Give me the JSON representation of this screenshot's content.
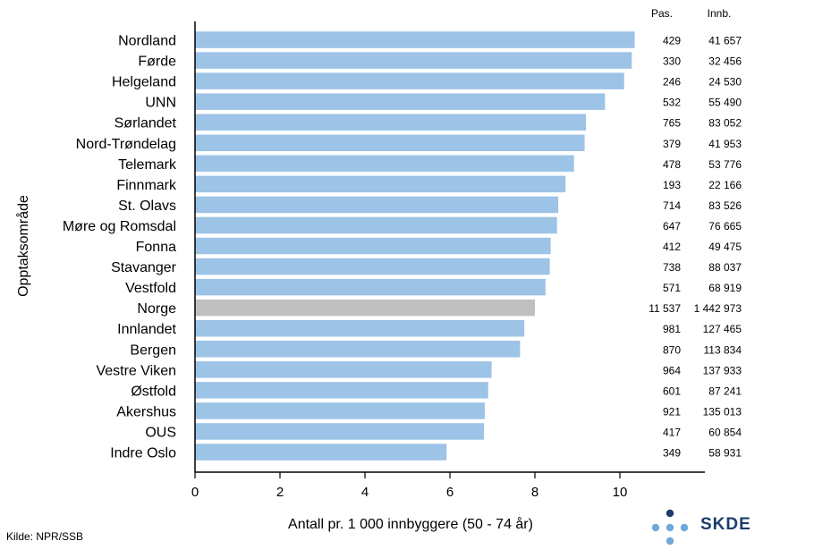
{
  "chart_data": {
    "type": "bar",
    "orientation": "horizontal",
    "categories": [
      "Nordland",
      "Førde",
      "Helgeland",
      "UNN",
      "Sørlandet",
      "Nord-Trøndelag",
      "Telemark",
      "Finnmark",
      "St. Olavs",
      "Møre og Romsdal",
      "Fonna",
      "Stavanger",
      "Vestfold",
      "Norge",
      "Innlandet",
      "Bergen",
      "Vestre Viken",
      "Østfold",
      "Akershus",
      "OUS",
      "Indre Oslo"
    ],
    "values": [
      10.35,
      10.28,
      10.1,
      9.65,
      9.2,
      9.17,
      8.92,
      8.72,
      8.55,
      8.52,
      8.37,
      8.35,
      8.25,
      8.0,
      7.75,
      7.65,
      6.98,
      6.9,
      6.82,
      6.8,
      5.92
    ],
    "highlight": "Norge",
    "colors": {
      "bar": "#9dc3e6",
      "highlight": "#c0c0c0",
      "axis": "#000000"
    },
    "xlabel": "Antall pr. 1 000 innbyggere (50 - 74 år)",
    "ylabel": "Opptaksområde",
    "xlim": [
      0,
      12
    ],
    "xticks": [
      "0",
      "2",
      "4",
      "6",
      "8",
      "10"
    ],
    "grid": false,
    "table": {
      "headers": [
        "Pas.",
        "Innb."
      ],
      "pas": [
        "429",
        "330",
        "246",
        "532",
        "765",
        "379",
        "478",
        "193",
        "714",
        "647",
        "412",
        "738",
        "571",
        "11 537",
        "981",
        "870",
        "964",
        "601",
        "921",
        "417",
        "349"
      ],
      "innb": [
        "41 657",
        "32 456",
        "24 530",
        "55 490",
        "83 052",
        "41 953",
        "53 776",
        "22 166",
        "83 526",
        "76 665",
        "49 475",
        "88 037",
        "68 919",
        "1 442 973",
        "127 465",
        "113 834",
        "137 933",
        "87 241",
        "135 013",
        "60 854",
        "58 931"
      ]
    }
  },
  "footer": {
    "source": "Kilde: NPR/SSB",
    "logo_text": "SKDE"
  },
  "logo_colors": {
    "dark": "#1c3c6c",
    "light": "#6fa8dc"
  }
}
